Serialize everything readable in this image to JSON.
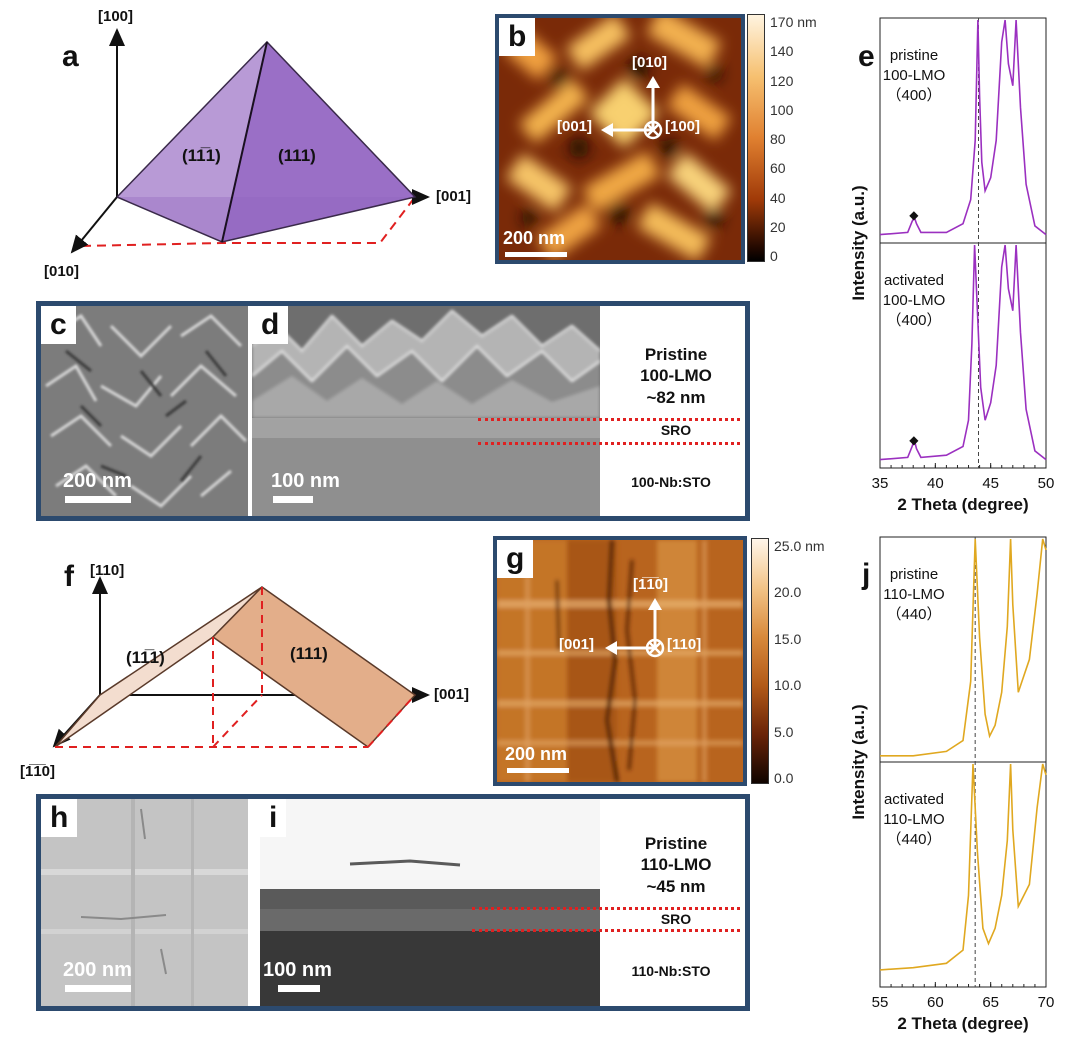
{
  "panel_a": {
    "letter": "a",
    "axis_up": "[100]",
    "axis_right": "[001]",
    "axis_diag": "[010]",
    "face_left": "(11̅1)",
    "face_right": "(111)",
    "face_color": "#9a70c4"
  },
  "panel_b": {
    "letter": "b",
    "dir_up": "[010]",
    "dir_left": "[001]",
    "dir_into": "[100]",
    "scale": "200 nm",
    "colorbar_ticks": [
      "170 nm",
      "140",
      "120",
      "100",
      "80",
      "60",
      "40",
      "20",
      "0"
    ]
  },
  "panel_cd": {
    "letter_c": "c",
    "letter_d": "d",
    "scale_c": "200 nm",
    "scale_d": "100 nm",
    "film_label": [
      "Pristine",
      "100-LMO",
      "~82 nm"
    ],
    "sro": "SRO",
    "substrate": "100-Nb:STO"
  },
  "panel_f": {
    "letter": "f",
    "axis_up": "[110]",
    "axis_right": "[001]",
    "axis_diag": "[1̅1̅0]",
    "face_left": "(11̅1)",
    "face_right": "(111)",
    "face_color": "#e0a47c"
  },
  "panel_g": {
    "letter": "g",
    "dir_up": "[1̅1̅0]",
    "dir_left": "[001]",
    "dir_into": "[110]",
    "scale": "200 nm",
    "colorbar_ticks": [
      "25.0 nm",
      "20.0",
      "15.0",
      "10.0",
      "5.0",
      "0.0"
    ]
  },
  "panel_hi": {
    "letter_h": "h",
    "letter_i": "i",
    "scale_h": "200 nm",
    "scale_i": "100 nm",
    "film_label": [
      "Pristine",
      "110-LMO",
      "~45 nm"
    ],
    "sro": "SRO",
    "substrate": "110-Nb:STO"
  },
  "chart_data": [
    {
      "type": "line",
      "panel": "e",
      "xlabel": "2 Theta (degree)",
      "ylabel": "Intensity (a.u.)",
      "xlim": [
        35,
        50
      ],
      "x_ticks": [
        35,
        40,
        45,
        50
      ],
      "color": "#9b30c0",
      "reference_line_x": 43.9,
      "series": [
        {
          "name": "pristine 100-LMO (400)",
          "label": [
            "pristine",
            "100-LMO",
            "（400）"
          ],
          "x": [
            35,
            37.5,
            37.9,
            38.1,
            38.3,
            38.7,
            41,
            42.5,
            43.2,
            43.6,
            43.85,
            44.0,
            44.2,
            44.5,
            45,
            45.5,
            46.0,
            46.3,
            46.6,
            47.0,
            47.3,
            47.7,
            48.2,
            49,
            50
          ],
          "y": [
            0.02,
            0.03,
            0.08,
            0.1,
            0.07,
            0.03,
            0.03,
            0.07,
            0.18,
            0.45,
            1.0,
            0.65,
            0.35,
            0.22,
            0.28,
            0.45,
            0.9,
            1.0,
            0.8,
            0.7,
            1.0,
            0.6,
            0.25,
            0.06,
            0.02
          ]
        },
        {
          "name": "activated 100-LMO (400)",
          "label": [
            "activated",
            "100-LMO",
            "（400）"
          ],
          "x": [
            35,
            37.5,
            37.9,
            38.1,
            38.3,
            38.7,
            41,
            42.5,
            43.0,
            43.3,
            43.55,
            43.8,
            44.1,
            44.5,
            45,
            45.5,
            46.0,
            46.3,
            46.6,
            47.0,
            47.3,
            47.7,
            48.2,
            49,
            50
          ],
          "y": [
            0.02,
            0.03,
            0.08,
            0.11,
            0.07,
            0.03,
            0.04,
            0.08,
            0.2,
            0.55,
            1.0,
            0.7,
            0.35,
            0.2,
            0.28,
            0.45,
            0.9,
            1.0,
            0.8,
            0.7,
            1.0,
            0.6,
            0.25,
            0.06,
            0.02
          ]
        }
      ],
      "markers": [
        "◆",
        "◆"
      ]
    },
    {
      "type": "line",
      "panel": "j",
      "xlabel": "2 Theta (degree)",
      "ylabel": "Intensity (a.u.)",
      "xlim": [
        55,
        70
      ],
      "x_ticks": [
        55,
        60,
        65,
        70
      ],
      "color": "#e0a820",
      "reference_line_x": 63.6,
      "series": [
        {
          "name": "pristine 110-LMO (440)",
          "label": [
            "pristine",
            "110-LMO",
            "（440）"
          ],
          "x": [
            55,
            58,
            61,
            62.5,
            63.2,
            63.6,
            64.0,
            64.5,
            64.9,
            65.4,
            66.0,
            66.5,
            66.8,
            67.0,
            67.5,
            68.5,
            69.2,
            69.7,
            70
          ],
          "y": [
            0.01,
            0.01,
            0.03,
            0.08,
            0.35,
            1.0,
            0.55,
            0.2,
            0.1,
            0.15,
            0.3,
            0.6,
            1.0,
            0.7,
            0.3,
            0.45,
            0.75,
            1.0,
            0.95
          ]
        },
        {
          "name": "activated 110-LMO (440)",
          "label": [
            "activated",
            "110-LMO",
            "（440）"
          ],
          "x": [
            55,
            58,
            61,
            62.5,
            63.0,
            63.4,
            63.8,
            64.3,
            64.8,
            65.4,
            66.0,
            66.5,
            66.8,
            67.0,
            67.5,
            68.5,
            69.2,
            69.7,
            70
          ],
          "y": [
            0.06,
            0.07,
            0.09,
            0.15,
            0.4,
            1.0,
            0.6,
            0.25,
            0.18,
            0.25,
            0.4,
            0.65,
            1.0,
            0.7,
            0.35,
            0.45,
            0.8,
            1.0,
            0.95
          ]
        }
      ]
    }
  ]
}
